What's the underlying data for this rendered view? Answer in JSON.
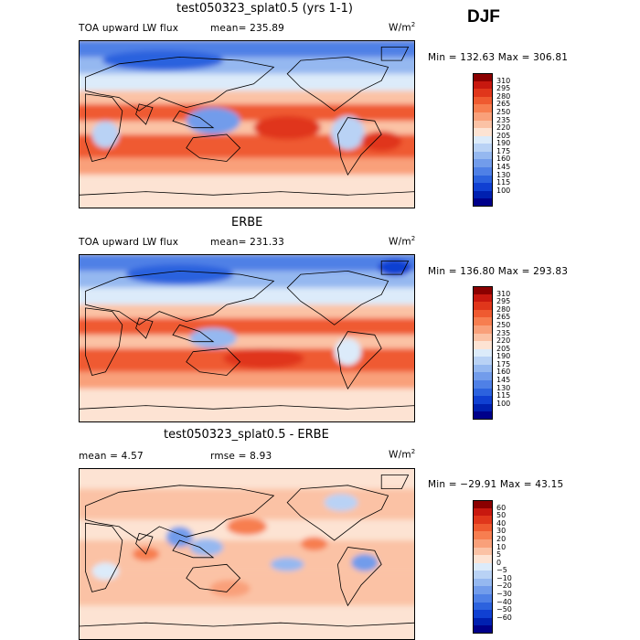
{
  "season": "DJF",
  "panels": [
    {
      "title": "test050323_splat0.5 (yrs 1-1)",
      "left_label": "TOA upward LW flux",
      "stat1": "mean=  235.89",
      "stat2": "",
      "units_base": "W/m",
      "units_exp": "2",
      "minmax": "Min = 132.63  Max = 306.81",
      "scale": "absolute",
      "colorbar": {
        "colors": [
          "#8b0000",
          "#c8180f",
          "#e0361b",
          "#ef5a30",
          "#f77e50",
          "#f9a07a",
          "#fbc2a5",
          "#fde3d3",
          "#dcebfa",
          "#b9d2f5",
          "#95b8f0",
          "#729ceb",
          "#4f80e6",
          "#2c62de",
          "#1040d2",
          "#0020b0",
          "#00008a"
        ],
        "labels": [
          "310",
          "295",
          "280",
          "265",
          "250",
          "235",
          "220",
          "205",
          "190",
          "175",
          "160",
          "145",
          "130",
          "115",
          "100"
        ]
      }
    },
    {
      "title": "ERBE",
      "left_label": "TOA upward LW flux",
      "stat1": "mean=  231.33",
      "stat2": "",
      "units_base": "W/m",
      "units_exp": "2",
      "minmax": "Min = 136.80  Max = 293.83",
      "scale": "absolute",
      "colorbar": {
        "colors": [
          "#8b0000",
          "#c8180f",
          "#e0361b",
          "#ef5a30",
          "#f77e50",
          "#f9a07a",
          "#fbc2a5",
          "#fde3d3",
          "#dcebfa",
          "#b9d2f5",
          "#95b8f0",
          "#729ceb",
          "#4f80e6",
          "#2c62de",
          "#1040d2",
          "#0020b0",
          "#00008a"
        ],
        "labels": [
          "310",
          "295",
          "280",
          "265",
          "250",
          "235",
          "220",
          "205",
          "190",
          "175",
          "160",
          "145",
          "130",
          "115",
          "100"
        ]
      }
    },
    {
      "title": "test050323_splat0.5 - ERBE",
      "left_label": "mean =    4.57",
      "stat1": "",
      "stat2": "rmse =    8.93",
      "units_base": "W/m",
      "units_exp": "2",
      "minmax": "Min = −29.91  Max =   43.15",
      "scale": "difference",
      "colorbar": {
        "colors": [
          "#8b0000",
          "#c8180f",
          "#e0361b",
          "#ef5a30",
          "#f77e50",
          "#f9a07a",
          "#fbc2a5",
          "#fde3d3",
          "#dcebfa",
          "#b9d2f5",
          "#95b8f0",
          "#729ceb",
          "#4f80e6",
          "#2c62de",
          "#1040d2",
          "#0020b0",
          "#00008a"
        ],
        "labels": [
          "60",
          "50",
          "40",
          "30",
          "20",
          "10",
          "5",
          "0",
          "−5",
          "−10",
          "−20",
          "−30",
          "−40",
          "−50",
          "−60"
        ]
      }
    }
  ]
}
